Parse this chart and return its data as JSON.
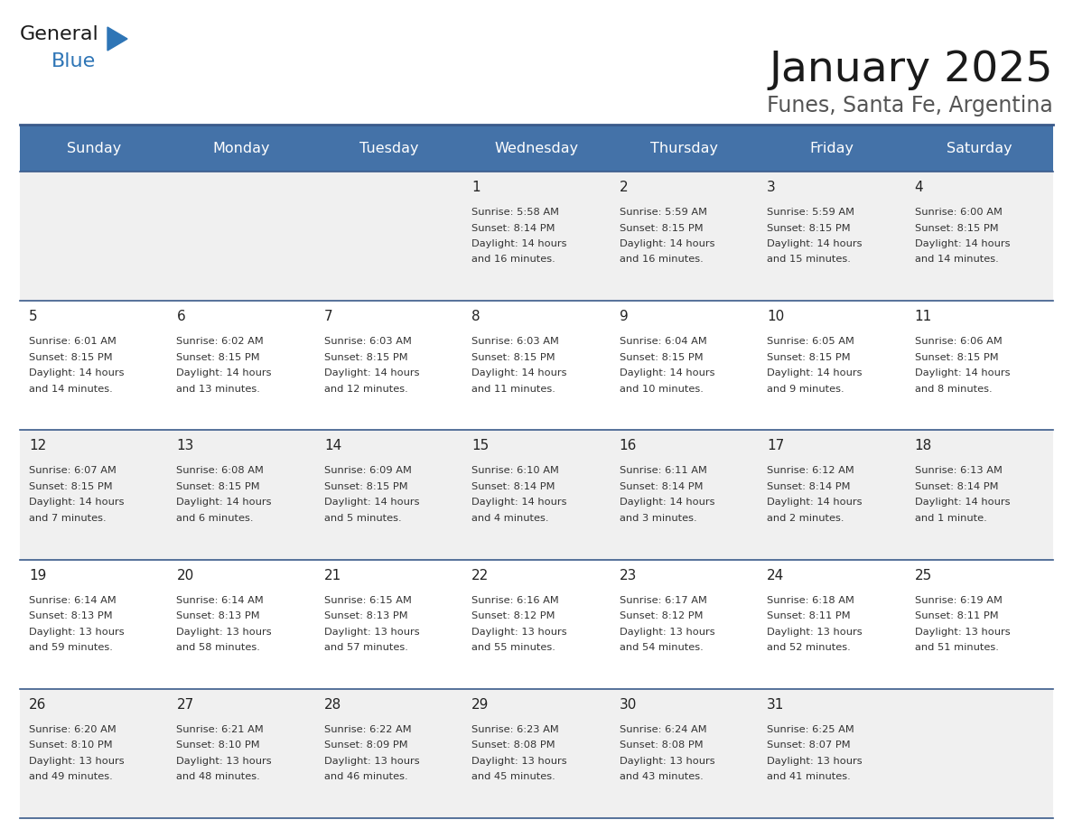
{
  "title": "January 2025",
  "subtitle": "Funes, Santa Fe, Argentina",
  "header_bg": "#4472a8",
  "header_text_color": "#ffffff",
  "odd_row_bg": "#f0f0f0",
  "even_row_bg": "#ffffff",
  "separator_color": "#3a5a8a",
  "text_color": "#333333",
  "days_of_week": [
    "Sunday",
    "Monday",
    "Tuesday",
    "Wednesday",
    "Thursday",
    "Friday",
    "Saturday"
  ],
  "calendar": [
    [
      "",
      "",
      "",
      "1",
      "2",
      "3",
      "4"
    ],
    [
      "5",
      "6",
      "7",
      "8",
      "9",
      "10",
      "11"
    ],
    [
      "12",
      "13",
      "14",
      "15",
      "16",
      "17",
      "18"
    ],
    [
      "19",
      "20",
      "21",
      "22",
      "23",
      "24",
      "25"
    ],
    [
      "26",
      "27",
      "28",
      "29",
      "30",
      "31",
      ""
    ]
  ],
  "cell_data": {
    "1": {
      "sunrise": "5:58 AM",
      "sunset": "8:14 PM",
      "daylight": "14 hours and 16 minutes."
    },
    "2": {
      "sunrise": "5:59 AM",
      "sunset": "8:15 PM",
      "daylight": "14 hours and 16 minutes."
    },
    "3": {
      "sunrise": "5:59 AM",
      "sunset": "8:15 PM",
      "daylight": "14 hours and 15 minutes."
    },
    "4": {
      "sunrise": "6:00 AM",
      "sunset": "8:15 PM",
      "daylight": "14 hours and 14 minutes."
    },
    "5": {
      "sunrise": "6:01 AM",
      "sunset": "8:15 PM",
      "daylight": "14 hours and 14 minutes."
    },
    "6": {
      "sunrise": "6:02 AM",
      "sunset": "8:15 PM",
      "daylight": "14 hours and 13 minutes."
    },
    "7": {
      "sunrise": "6:03 AM",
      "sunset": "8:15 PM",
      "daylight": "14 hours and 12 minutes."
    },
    "8": {
      "sunrise": "6:03 AM",
      "sunset": "8:15 PM",
      "daylight": "14 hours and 11 minutes."
    },
    "9": {
      "sunrise": "6:04 AM",
      "sunset": "8:15 PM",
      "daylight": "14 hours and 10 minutes."
    },
    "10": {
      "sunrise": "6:05 AM",
      "sunset": "8:15 PM",
      "daylight": "14 hours and 9 minutes."
    },
    "11": {
      "sunrise": "6:06 AM",
      "sunset": "8:15 PM",
      "daylight": "14 hours and 8 minutes."
    },
    "12": {
      "sunrise": "6:07 AM",
      "sunset": "8:15 PM",
      "daylight": "14 hours and 7 minutes."
    },
    "13": {
      "sunrise": "6:08 AM",
      "sunset": "8:15 PM",
      "daylight": "14 hours and 6 minutes."
    },
    "14": {
      "sunrise": "6:09 AM",
      "sunset": "8:15 PM",
      "daylight": "14 hours and 5 minutes."
    },
    "15": {
      "sunrise": "6:10 AM",
      "sunset": "8:14 PM",
      "daylight": "14 hours and 4 minutes."
    },
    "16": {
      "sunrise": "6:11 AM",
      "sunset": "8:14 PM",
      "daylight": "14 hours and 3 minutes."
    },
    "17": {
      "sunrise": "6:12 AM",
      "sunset": "8:14 PM",
      "daylight": "14 hours and 2 minutes."
    },
    "18": {
      "sunrise": "6:13 AM",
      "sunset": "8:14 PM",
      "daylight": "14 hours and 1 minute."
    },
    "19": {
      "sunrise": "6:14 AM",
      "sunset": "8:13 PM",
      "daylight": "13 hours and 59 minutes."
    },
    "20": {
      "sunrise": "6:14 AM",
      "sunset": "8:13 PM",
      "daylight": "13 hours and 58 minutes."
    },
    "21": {
      "sunrise": "6:15 AM",
      "sunset": "8:13 PM",
      "daylight": "13 hours and 57 minutes."
    },
    "22": {
      "sunrise": "6:16 AM",
      "sunset": "8:12 PM",
      "daylight": "13 hours and 55 minutes."
    },
    "23": {
      "sunrise": "6:17 AM",
      "sunset": "8:12 PM",
      "daylight": "13 hours and 54 minutes."
    },
    "24": {
      "sunrise": "6:18 AM",
      "sunset": "8:11 PM",
      "daylight": "13 hours and 52 minutes."
    },
    "25": {
      "sunrise": "6:19 AM",
      "sunset": "8:11 PM",
      "daylight": "13 hours and 51 minutes."
    },
    "26": {
      "sunrise": "6:20 AM",
      "sunset": "8:10 PM",
      "daylight": "13 hours and 49 minutes."
    },
    "27": {
      "sunrise": "6:21 AM",
      "sunset": "8:10 PM",
      "daylight": "13 hours and 48 minutes."
    },
    "28": {
      "sunrise": "6:22 AM",
      "sunset": "8:09 PM",
      "daylight": "13 hours and 46 minutes."
    },
    "29": {
      "sunrise": "6:23 AM",
      "sunset": "8:08 PM",
      "daylight": "13 hours and 45 minutes."
    },
    "30": {
      "sunrise": "6:24 AM",
      "sunset": "8:08 PM",
      "daylight": "13 hours and 43 minutes."
    },
    "31": {
      "sunrise": "6:25 AM",
      "sunset": "8:07 PM",
      "daylight": "13 hours and 41 minutes."
    }
  },
  "fig_width": 11.88,
  "fig_height": 9.18,
  "dpi": 100
}
